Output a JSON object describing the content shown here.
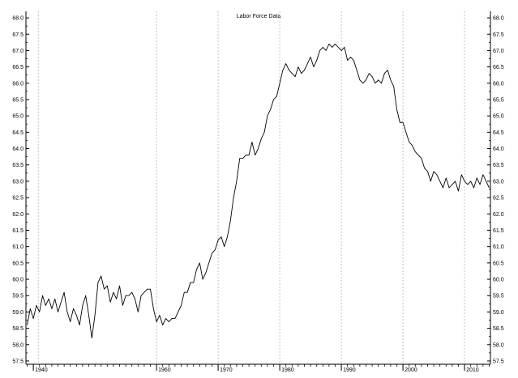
{
  "colors": {
    "background": "#ffffff",
    "line": "#000000",
    "grid": "#b4b4b4",
    "axis": "#000000"
  },
  "chart_data": {
    "type": "line",
    "title": "Labor Force Data",
    "xlabel": "",
    "ylabel": "",
    "xlim": [
      1938.8,
      2014.2
    ],
    "ylim": [
      57.4,
      68.2
    ],
    "grid": {
      "vertical": true,
      "horizontal": false
    },
    "x_ticks": [
      {
        "x": 1940,
        "label": "1940"
      },
      {
        "x": 1960,
        "label": "1960"
      },
      {
        "x": 1970,
        "label": "1970"
      },
      {
        "x": 1980,
        "label": "1980"
      },
      {
        "x": 1990,
        "label": "1990"
      },
      {
        "x": 2000,
        "label": "2000"
      },
      {
        "x": 2010,
        "label": "2010"
      }
    ],
    "y_ticks": [
      "57.5",
      "58.0",
      "58.5",
      "59.0",
      "59.5",
      "60.0",
      "60.5",
      "61.0",
      "61.5",
      "62.0",
      "62.5",
      "63.0",
      "63.5",
      "64.0",
      "64.5",
      "65.0",
      "65.5",
      "66.0",
      "66.5",
      "67.0",
      "67.5",
      "68.0"
    ],
    "series": [
      {
        "values": [
          [
            1939.0,
            58.6
          ],
          [
            1939.5,
            59.1
          ],
          [
            1940.0,
            58.8
          ],
          [
            1940.5,
            59.2
          ],
          [
            1941.0,
            59.0
          ],
          [
            1941.5,
            59.5
          ],
          [
            1942.0,
            59.2
          ],
          [
            1942.5,
            59.4
          ],
          [
            1943.0,
            59.1
          ],
          [
            1943.5,
            59.4
          ],
          [
            1944.0,
            59.0
          ],
          [
            1944.5,
            59.3
          ],
          [
            1945.0,
            59.6
          ],
          [
            1945.5,
            59.0
          ],
          [
            1946.0,
            58.7
          ],
          [
            1946.5,
            59.1
          ],
          [
            1947.0,
            58.9
          ],
          [
            1947.5,
            58.6
          ],
          [
            1948.0,
            59.2
          ],
          [
            1948.5,
            59.5
          ],
          [
            1949.0,
            58.9
          ],
          [
            1949.5,
            58.2
          ],
          [
            1950.0,
            58.9
          ],
          [
            1950.5,
            59.9
          ],
          [
            1951.0,
            60.1
          ],
          [
            1951.5,
            59.7
          ],
          [
            1952.0,
            59.8
          ],
          [
            1952.5,
            59.3
          ],
          [
            1953.0,
            59.6
          ],
          [
            1953.5,
            59.4
          ],
          [
            1954.0,
            59.8
          ],
          [
            1954.5,
            59.2
          ],
          [
            1955.0,
            59.5
          ],
          [
            1955.5,
            59.5
          ],
          [
            1956.0,
            59.6
          ],
          [
            1956.5,
            59.4
          ],
          [
            1957.0,
            59.0
          ],
          [
            1957.5,
            59.5
          ],
          [
            1958.0,
            59.6
          ],
          [
            1958.5,
            59.7
          ],
          [
            1959.0,
            59.7
          ],
          [
            1959.5,
            59.1
          ],
          [
            1960.0,
            58.7
          ],
          [
            1960.5,
            58.9
          ],
          [
            1961.0,
            58.6
          ],
          [
            1961.5,
            58.8
          ],
          [
            1962.0,
            58.7
          ],
          [
            1962.5,
            58.8
          ],
          [
            1963.0,
            58.8
          ],
          [
            1963.5,
            59.0
          ],
          [
            1964.0,
            59.2
          ],
          [
            1964.5,
            59.6
          ],
          [
            1965.0,
            59.6
          ],
          [
            1965.5,
            59.9
          ],
          [
            1966.0,
            59.9
          ],
          [
            1966.5,
            60.3
          ],
          [
            1967.0,
            60.5
          ],
          [
            1967.5,
            60.0
          ],
          [
            1968.0,
            60.2
          ],
          [
            1968.5,
            60.5
          ],
          [
            1969.0,
            60.8
          ],
          [
            1969.5,
            60.9
          ],
          [
            1970.0,
            61.2
          ],
          [
            1970.5,
            61.3
          ],
          [
            1971.0,
            61.0
          ],
          [
            1971.5,
            61.3
          ],
          [
            1972.0,
            61.8
          ],
          [
            1972.5,
            62.5
          ],
          [
            1973.0,
            63.0
          ],
          [
            1973.5,
            63.7
          ],
          [
            1974.0,
            63.7
          ],
          [
            1974.5,
            63.8
          ],
          [
            1975.0,
            63.8
          ],
          [
            1975.5,
            64.2
          ],
          [
            1976.0,
            63.8
          ],
          [
            1976.5,
            64.0
          ],
          [
            1977.0,
            64.3
          ],
          [
            1977.5,
            64.5
          ],
          [
            1978.0,
            65.0
          ],
          [
            1978.5,
            65.2
          ],
          [
            1979.0,
            65.5
          ],
          [
            1979.5,
            65.6
          ],
          [
            1980.0,
            66.0
          ],
          [
            1980.5,
            66.4
          ],
          [
            1981.0,
            66.6
          ],
          [
            1981.5,
            66.4
          ],
          [
            1982.0,
            66.3
          ],
          [
            1982.5,
            66.2
          ],
          [
            1983.0,
            66.5
          ],
          [
            1983.5,
            66.3
          ],
          [
            1984.0,
            66.4
          ],
          [
            1984.5,
            66.6
          ],
          [
            1985.0,
            66.8
          ],
          [
            1985.5,
            66.5
          ],
          [
            1986.0,
            66.7
          ],
          [
            1986.5,
            67.0
          ],
          [
            1987.0,
            67.1
          ],
          [
            1987.5,
            67.0
          ],
          [
            1988.0,
            67.2
          ],
          [
            1988.5,
            67.1
          ],
          [
            1989.0,
            67.2
          ],
          [
            1989.5,
            67.1
          ],
          [
            1990.0,
            67.0
          ],
          [
            1990.5,
            67.1
          ],
          [
            1991.0,
            66.7
          ],
          [
            1991.5,
            66.8
          ],
          [
            1992.0,
            66.7
          ],
          [
            1992.5,
            66.4
          ],
          [
            1993.0,
            66.1
          ],
          [
            1993.5,
            66.0
          ],
          [
            1994.0,
            66.1
          ],
          [
            1994.5,
            66.3
          ],
          [
            1995.0,
            66.2
          ],
          [
            1995.5,
            66.0
          ],
          [
            1996.0,
            66.1
          ],
          [
            1996.5,
            66.0
          ],
          [
            1997.0,
            66.3
          ],
          [
            1997.5,
            66.4
          ],
          [
            1998.0,
            66.1
          ],
          [
            1998.5,
            65.9
          ],
          [
            1999.0,
            65.2
          ],
          [
            1999.5,
            64.8
          ],
          [
            2000.0,
            64.8
          ],
          [
            2000.5,
            64.5
          ],
          [
            2001.0,
            64.2
          ],
          [
            2001.5,
            64.1
          ],
          [
            2002.0,
            63.9
          ],
          [
            2002.5,
            63.8
          ],
          [
            2003.0,
            63.7
          ],
          [
            2003.5,
            63.4
          ],
          [
            2004.0,
            63.3
          ],
          [
            2004.5,
            63.0
          ],
          [
            2005.0,
            63.3
          ],
          [
            2005.5,
            63.2
          ],
          [
            2006.0,
            63.0
          ],
          [
            2006.5,
            62.8
          ],
          [
            2007.0,
            63.1
          ],
          [
            2007.5,
            62.8
          ],
          [
            2008.0,
            62.9
          ],
          [
            2008.5,
            63.0
          ],
          [
            2009.0,
            62.7
          ],
          [
            2009.5,
            63.2
          ],
          [
            2010.0,
            63.0
          ],
          [
            2010.5,
            62.9
          ],
          [
            2011.0,
            63.0
          ],
          [
            2011.5,
            62.8
          ],
          [
            2012.0,
            63.1
          ],
          [
            2012.5,
            62.9
          ],
          [
            2013.0,
            63.2
          ],
          [
            2013.5,
            63.0
          ],
          [
            2014.0,
            62.8
          ]
        ]
      }
    ]
  }
}
